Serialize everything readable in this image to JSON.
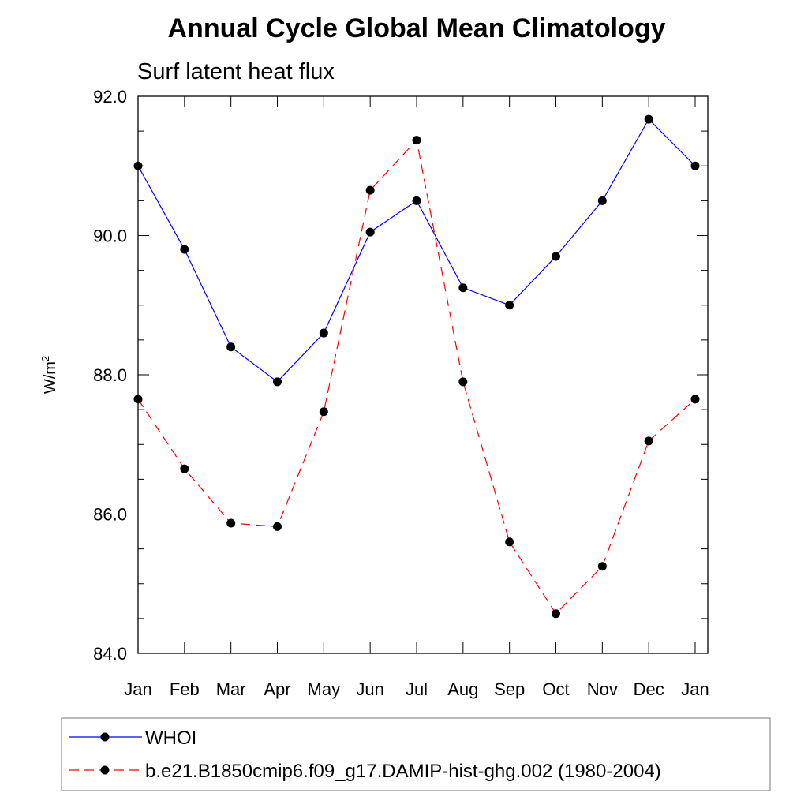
{
  "chart_data": {
    "type": "line",
    "title": "Annual Cycle Global Mean Climatology",
    "subtitle": "Surf latent heat flux",
    "ylabel_main": "W/m",
    "ylabel_sup": "2",
    "xlabel": "",
    "categories": [
      "Jan",
      "Feb",
      "Mar",
      "Apr",
      "May",
      "Jun",
      "Jul",
      "Aug",
      "Sep",
      "Oct",
      "Nov",
      "Dec",
      "Jan"
    ],
    "ylim": [
      84.0,
      92.0
    ],
    "yticks": [
      "84.0",
      "86.0",
      "88.0",
      "90.0",
      "92.0"
    ],
    "legend_placement": "bottom",
    "series": [
      {
        "name": "WHOI",
        "color": "#0000ff",
        "dash": "solid",
        "marker": "filled-circle",
        "values": [
          91.0,
          89.8,
          88.4,
          87.9,
          88.6,
          90.05,
          90.5,
          89.25,
          89.0,
          89.7,
          90.5,
          91.67,
          91.0
        ]
      },
      {
        "name": "b.e21.B1850cmip6.f09_g17.DAMIP-hist-ghg.002 (1980-2004)",
        "color": "#ff0000",
        "dash": "dashed",
        "marker": "filled-circle",
        "values": [
          87.65,
          86.65,
          85.87,
          85.82,
          87.47,
          90.65,
          91.37,
          87.9,
          85.6,
          84.57,
          85.25,
          87.05,
          87.65
        ]
      }
    ]
  }
}
